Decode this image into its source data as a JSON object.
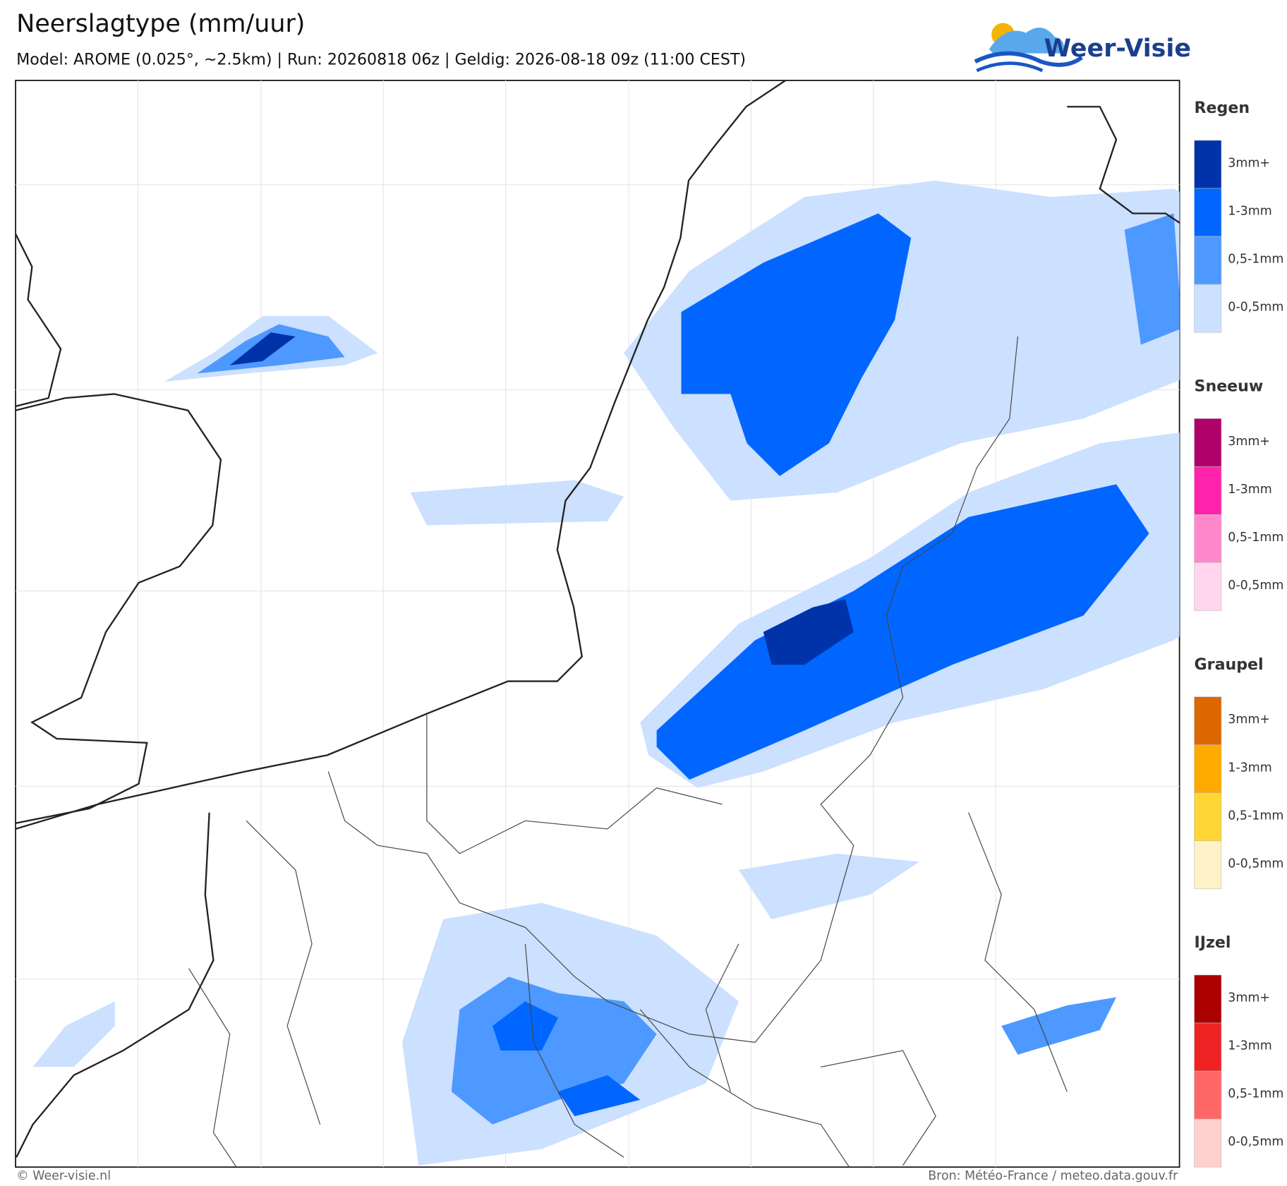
{
  "header": {
    "title": "Neerslagtype (mm/uur)",
    "subtitle": "Model: AROME (0.025°, ~2.5km)  |  Run: 20260818 06z  |  Geldig: 2026-08-18 09z (11:00 CEST)"
  },
  "logo": {
    "text": "Weer-Visie"
  },
  "legend": [
    {
      "title": "Regen",
      "items": [
        {
          "label": "3mm+",
          "color": "#0033aa"
        },
        {
          "label": "1-3mm",
          "color": "#0066ff"
        },
        {
          "label": "0,5-1mm",
          "color": "#4d99ff"
        },
        {
          "label": "0-0,5mm",
          "color": "#cce0ff"
        }
      ]
    },
    {
      "title": "Sneeuw",
      "items": [
        {
          "label": "3mm+",
          "color": "#b0006a"
        },
        {
          "label": "1-3mm",
          "color": "#ff22aa"
        },
        {
          "label": "0,5-1mm",
          "color": "#ff88cc"
        },
        {
          "label": "0-0,5mm",
          "color": "#ffd6ee"
        }
      ]
    },
    {
      "title": "Graupel",
      "items": [
        {
          "label": "3mm+",
          "color": "#dd6600"
        },
        {
          "label": "1-3mm",
          "color": "#ffaa00"
        },
        {
          "label": "0,5-1mm",
          "color": "#ffd633"
        },
        {
          "label": "0-0,5mm",
          "color": "#fff2c8"
        }
      ]
    },
    {
      "title": "IJzel",
      "items": [
        {
          "label": "3mm+",
          "color": "#aa0000"
        },
        {
          "label": "1-3mm",
          "color": "#ee2222"
        },
        {
          "label": "0,5-1mm",
          "color": "#ff6666"
        },
        {
          "label": "0-0,5mm",
          "color": "#ffd0d0"
        }
      ]
    }
  ],
  "footer": {
    "left": "© Weer-visie.nl",
    "right": "Bron: Météo-France / meteo.data.gouv.fr"
  }
}
